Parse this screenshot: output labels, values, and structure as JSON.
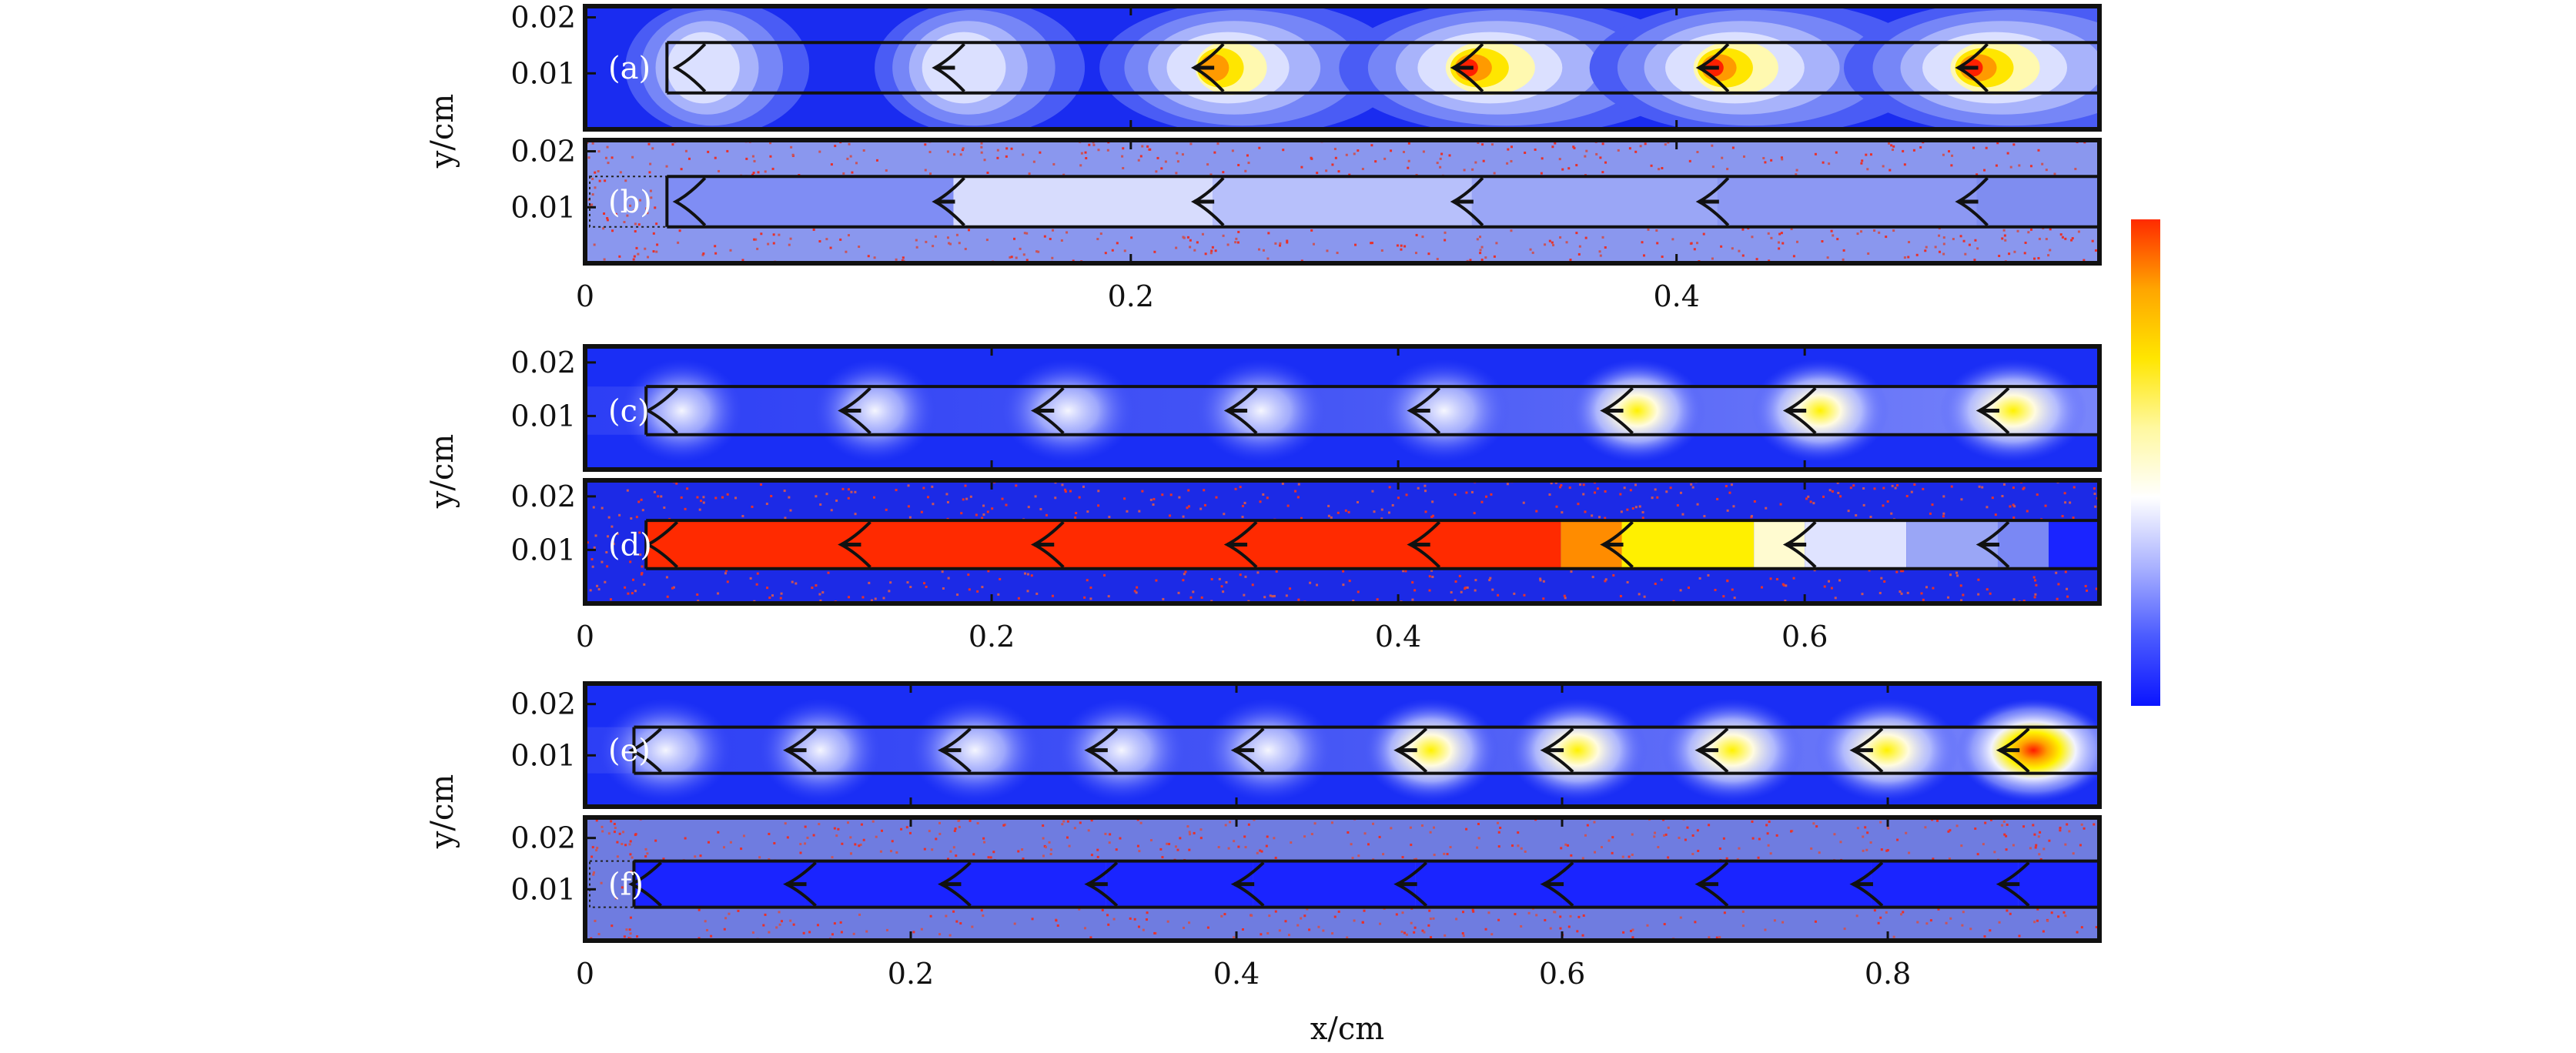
{
  "figure": {
    "xlabel": "x/cm",
    "ylabel": "y/cm",
    "colorbar": {
      "stops": [
        "#0a14ff",
        "#4b5bff",
        "#aab2ff",
        "#ffffff",
        "#fff8a0",
        "#ffe600",
        "#ffa500",
        "#ff2a00"
      ]
    }
  },
  "chart_data": [
    {
      "type": "heatmap",
      "panel": "(a)",
      "field": "contour",
      "xlim": [
        0,
        0.555
      ],
      "ylim": [
        0,
        0.022
      ],
      "x_ticks": [],
      "y_ticks": [
        "0.01",
        "0.02"
      ],
      "y_tick_values": [
        0.01,
        0.02
      ],
      "channel_y": [
        0.0065,
        0.0155
      ],
      "fronts_x": [
        0.04,
        0.135,
        0.23,
        0.325,
        0.415,
        0.51
      ],
      "front_intensity": [
        0.35,
        0.45,
        0.8,
        1.0,
        0.95,
        1.0
      ],
      "background": "#1a2cf0"
    },
    {
      "type": "heatmap",
      "panel": "(b)",
      "field": "particles",
      "xlim": [
        0,
        0.555
      ],
      "ylim": [
        0,
        0.022
      ],
      "x_ticks": [
        "0",
        "0.2",
        "0.4"
      ],
      "x_tick_values": [
        0,
        0.2,
        0.4
      ],
      "y_ticks": [
        "0.01",
        "0.02"
      ],
      "y_tick_values": [
        0.01,
        0.02
      ],
      "channel_y": [
        0.0065,
        0.0155
      ],
      "fronts_x": [
        0.04,
        0.135,
        0.23,
        0.325,
        0.415,
        0.51
      ],
      "segment_colors": [
        "#7f8df4",
        "#d7dcfd",
        "#b7c0fb",
        "#9aa6f6",
        "#8c98f3",
        "#7f8df0"
      ],
      "background": "#8a97ee"
    },
    {
      "type": "heatmap",
      "panel": "(c)",
      "field": "smooth",
      "xlim": [
        0,
        0.745
      ],
      "ylim": [
        0,
        0.023
      ],
      "x_ticks": [],
      "y_ticks": [
        "0.01",
        "0.02"
      ],
      "y_tick_values": [
        0.01,
        0.02
      ],
      "channel_y": [
        0.0065,
        0.0155
      ],
      "fronts_x": [
        0.04,
        0.135,
        0.23,
        0.325,
        0.415,
        0.51,
        0.6,
        0.695
      ],
      "front_intensity": [
        0.3,
        0.3,
        0.55,
        0.5,
        0.5,
        0.6,
        0.65,
        0.85
      ],
      "background": "#1a2ef5"
    },
    {
      "type": "heatmap",
      "panel": "(d)",
      "field": "particles",
      "xlim": [
        0,
        0.745
      ],
      "ylim": [
        0,
        0.023
      ],
      "x_ticks": [
        "0",
        "0.2",
        "0.4",
        "0.6"
      ],
      "x_tick_values": [
        0,
        0.2,
        0.4,
        0.6
      ],
      "y_ticks": [
        "0.01",
        "0.02"
      ],
      "y_tick_values": [
        0.01,
        0.02
      ],
      "channel_y": [
        0.0065,
        0.0155
      ],
      "fronts_x": [
        0.04,
        0.135,
        0.23,
        0.325,
        0.415,
        0.51,
        0.6,
        0.695
      ],
      "segment_edges": [
        0.03,
        0.48,
        0.51,
        0.575,
        0.6,
        0.65,
        0.695,
        0.72,
        0.745
      ],
      "segment_colors": [
        "#ff2a00",
        "#ff8c00",
        "#fff000",
        "#fffbd0",
        "#dfe3ff",
        "#9aa6f6",
        "#7a88f4",
        "#1a24ff"
      ],
      "background": "#1c2ae6"
    },
    {
      "type": "heatmap",
      "panel": "(e)",
      "field": "smooth",
      "xlim": [
        0,
        0.93
      ],
      "ylim": [
        0,
        0.024
      ],
      "x_ticks": [],
      "y_ticks": [
        "0.01",
        "0.02"
      ],
      "y_tick_values": [
        0.01,
        0.02
      ],
      "channel_y": [
        0.0065,
        0.0155
      ],
      "fronts_x": [
        0.04,
        0.135,
        0.23,
        0.32,
        0.41,
        0.51,
        0.6,
        0.695,
        0.79,
        0.88
      ],
      "front_intensity": [
        0.55,
        0.3,
        0.5,
        0.45,
        0.5,
        0.6,
        0.7,
        0.75,
        0.8,
        1.0
      ],
      "background": "#1a2ef5"
    },
    {
      "type": "heatmap",
      "panel": "(f)",
      "field": "particles",
      "xlim": [
        0,
        0.93
      ],
      "ylim": [
        0,
        0.024
      ],
      "x_ticks": [
        "0",
        "0.2",
        "0.4",
        "0.6",
        "0.8"
      ],
      "x_tick_values": [
        0,
        0.2,
        0.4,
        0.6,
        0.8
      ],
      "y_ticks": [
        "0.01",
        "0.02"
      ],
      "y_tick_values": [
        0.01,
        0.02
      ],
      "channel_y": [
        0.0065,
        0.0155
      ],
      "fronts_x": [
        0.04,
        0.135,
        0.23,
        0.32,
        0.41,
        0.51,
        0.6,
        0.695,
        0.79,
        0.88
      ],
      "segment_colors": [
        "#1a24ff"
      ],
      "background": "#6f7ce0"
    }
  ]
}
